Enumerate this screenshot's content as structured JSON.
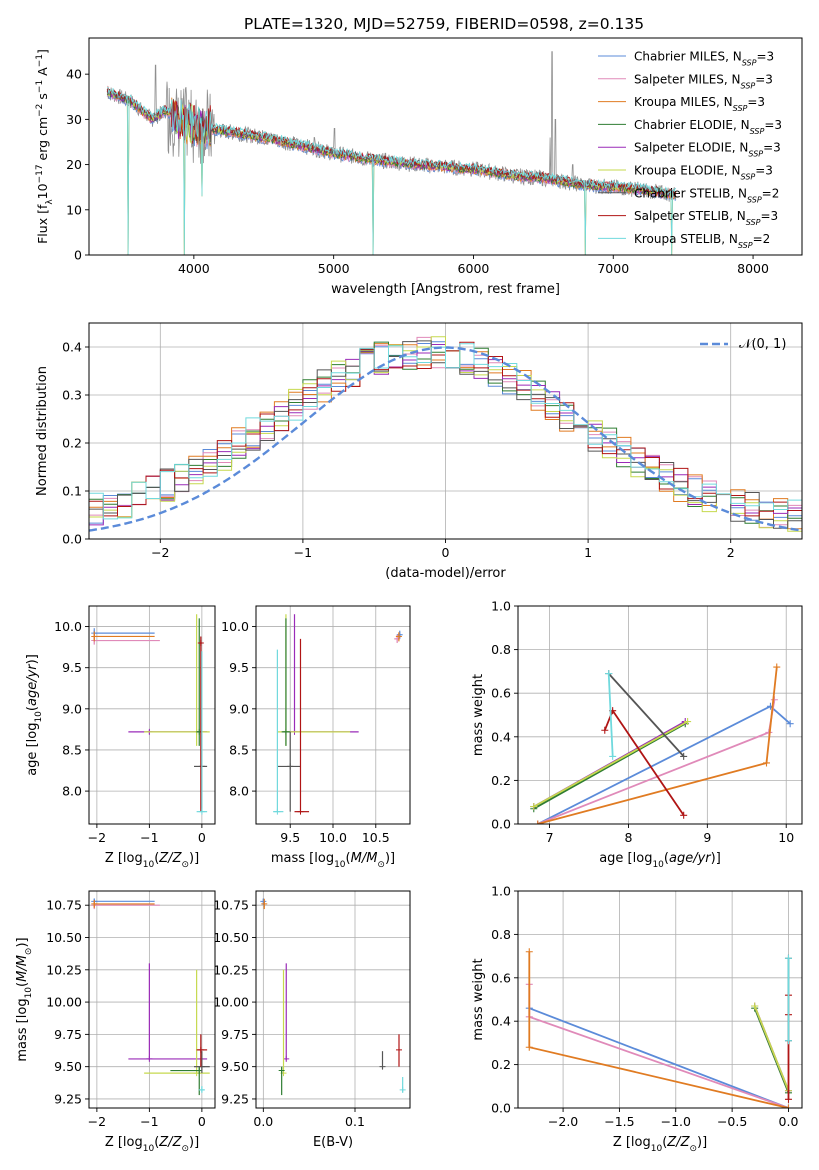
{
  "figure_title": "PLATE=1320, MJD=52759, FIBERID=0598, z=0.135",
  "colors": {
    "chabrier_miles": "#5b8bd9",
    "salpeter_miles": "#e08ab9",
    "kroupa_miles": "#e07b22",
    "chabrier_elodie": "#2f7d32",
    "salpeter_elodie": "#9a2bb8",
    "kroupa_elodie": "#c6d94e",
    "chabrier_stelib": "#555555",
    "salpeter_stelib": "#b01515",
    "kroupa_stelib": "#70d9dd",
    "data": "#8f8f8f",
    "normal": "#5b8bd9"
  },
  "chart_data": [
    {
      "id": "spectrum",
      "type": "line",
      "title": "PLATE=1320, MJD=52759, FIBERID=0598, z=0.135",
      "xlabel": "wavelength [Angstrom, rest frame]",
      "ylabel": "Flux [f_λ 10^-17 erg cm^-2 s^-1 A^-1]",
      "ylabel_parts": [
        "Flux [f",
        "λ",
        "10",
        "−17",
        " erg cm",
        "−2",
        " s",
        "−1",
        " A",
        "−1",
        "]"
      ],
      "xlim": [
        3250,
        8350
      ],
      "ylim": [
        0,
        48
      ],
      "x_ticks": [
        "4000",
        "5000",
        "6000",
        "7000",
        "8000"
      ],
      "y_ticks": [
        "0",
        "10",
        "20",
        "30",
        "40"
      ],
      "grid": false,
      "legend_position": "upper-right",
      "legend": [
        {
          "name": "Chabrier MILES",
          "nssp": "3",
          "key": "chabrier_miles"
        },
        {
          "name": "Salpeter MILES",
          "nssp": "3",
          "key": "salpeter_miles"
        },
        {
          "name": "Kroupa MILES",
          "nssp": "3",
          "key": "kroupa_miles"
        },
        {
          "name": "Chabrier ELODIE",
          "nssp": "3",
          "key": "chabrier_elodie"
        },
        {
          "name": "Salpeter ELODIE",
          "nssp": "3",
          "key": "salpeter_elodie"
        },
        {
          "name": "Kroupa ELODIE",
          "nssp": "3",
          "key": "kroupa_elodie"
        },
        {
          "name": "Chabrier STELIB",
          "nssp": "2",
          "key": "chabrier_stelib"
        },
        {
          "name": "Salpeter STELIB",
          "nssp": "3",
          "key": "salpeter_stelib"
        },
        {
          "name": "Kroupa STELIB",
          "nssp": "2",
          "key": "kroupa_stelib"
        }
      ],
      "continuum": [
        [
          3380,
          36
        ],
        [
          3550,
          34
        ],
        [
          3700,
          30
        ],
        [
          3800,
          32
        ],
        [
          3950,
          29
        ],
        [
          4100,
          28
        ],
        [
          4300,
          27
        ],
        [
          4500,
          26
        ],
        [
          4800,
          24
        ],
        [
          5000,
          22.5
        ],
        [
          5300,
          21
        ],
        [
          5600,
          20
        ],
        [
          6000,
          19
        ],
        [
          6300,
          17.5
        ],
        [
          6500,
          17
        ],
        [
          6800,
          15.5
        ],
        [
          7000,
          15
        ],
        [
          7200,
          14.5
        ],
        [
          7400,
          13.5
        ]
      ],
      "data_spikes": [
        [
          6563,
          45
        ],
        [
          6585,
          30
        ],
        [
          6548,
          26
        ],
        [
          6710,
          20
        ],
        [
          5007,
          28
        ],
        [
          4861,
          26
        ],
        [
          3727,
          42
        ]
      ],
      "model_drops": [
        [
          3530,
          0
        ],
        [
          3930,
          0
        ],
        [
          4060,
          13
        ],
        [
          5280,
          0
        ],
        [
          6800,
          0
        ],
        [
          7420,
          0
        ]
      ]
    },
    {
      "id": "residuals",
      "type": "histogram",
      "xlabel": "(data-model)/error",
      "ylabel": "Normed distribution",
      "xlim": [
        -2.5,
        2.5
      ],
      "ylim": [
        0,
        0.45
      ],
      "x_ticks": [
        "−2",
        "−1",
        "0",
        "1",
        "2"
      ],
      "y_ticks": [
        "0.0",
        "0.1",
        "0.2",
        "0.3",
        "0.4"
      ],
      "grid": true,
      "legend_position": "upper-right",
      "legend_label": "𝒩(0, 1)",
      "bin_width": 0.1,
      "normal": {
        "mu": 0,
        "sigma": 1
      }
    },
    {
      "id": "age_vs_Z",
      "type": "errorbar",
      "xlabel": "Z [log10(Z/Z⊙)]",
      "ylabel": "age [log10(age/yr)]",
      "xlim": [
        -2.15,
        0.25
      ],
      "ylim": [
        7.6,
        10.25
      ],
      "x_ticks": [
        "−2",
        "−1",
        "0"
      ],
      "y_ticks": [
        "8.0",
        "8.5",
        "9.0",
        "9.5",
        "10.0"
      ],
      "grid": true,
      "points": [
        {
          "key": "chabrier_miles",
          "x": -2.05,
          "xe": [
            -2.05,
            -0.9
          ],
          "y": 9.92,
          "ye": [
            9.85,
            9.98
          ]
        },
        {
          "key": "salpeter_miles",
          "x": -2.05,
          "xe": [
            -2.05,
            -0.8
          ],
          "y": 9.83,
          "ye": [
            9.78,
            9.9
          ]
        },
        {
          "key": "kroupa_miles",
          "x": -2.05,
          "xe": [
            -2.05,
            -0.9
          ],
          "y": 9.88,
          "ye": [
            9.82,
            9.94
          ]
        },
        {
          "key": "salpeter_elodie",
          "x": -1.0,
          "xe": [
            -1.4,
            0.1
          ],
          "y": 8.72,
          "ye": [
            8.7,
            8.74
          ]
        },
        {
          "key": "kroupa_elodie",
          "x": -0.1,
          "xe": [
            -1.1,
            0.15
          ],
          "y": 8.72,
          "ye": [
            8.55,
            10.15
          ]
        },
        {
          "key": "chabrier_elodie",
          "x": -0.05,
          "xe": [
            -0.1,
            0.0
          ],
          "y": 8.72,
          "ye": [
            8.55,
            10.1
          ]
        },
        {
          "key": "chabrier_stelib",
          "x": 0.0,
          "xe": [
            -0.15,
            0.1
          ],
          "y": 8.3,
          "ye": [
            7.75,
            8.7
          ]
        },
        {
          "key": "salpeter_stelib",
          "x": -0.02,
          "xe": [
            -0.05,
            0.0
          ],
          "y": 9.8,
          "ye": [
            7.75,
            9.88
          ]
        },
        {
          "key": "kroupa_stelib",
          "x": 0.0,
          "xe": [
            -0.1,
            0.1
          ],
          "y": 7.75,
          "ye": [
            7.75,
            9.7
          ]
        }
      ]
    },
    {
      "id": "age_vs_mass",
      "type": "errorbar",
      "xlabel": "mass [log10(M/M⊙)]",
      "ylabel": "",
      "xlim": [
        9.1,
        10.9
      ],
      "ylim": [
        7.6,
        10.25
      ],
      "x_ticks": [
        "9.5",
        "10.0",
        "10.5"
      ],
      "y_ticks": [
        "8.0",
        "8.5",
        "9.0",
        "9.5",
        "10.0"
      ],
      "grid": true,
      "points": [
        {
          "key": "chabrier_miles",
          "x": 10.78,
          "xe": [
            10.75,
            10.8
          ],
          "y": 9.9,
          "ye": [
            9.85,
            9.95
          ]
        },
        {
          "key": "salpeter_miles",
          "x": 10.75,
          "xe": [
            10.72,
            10.78
          ],
          "y": 9.85,
          "ye": [
            9.8,
            9.9
          ]
        },
        {
          "key": "kroupa_miles",
          "x": 10.77,
          "xe": [
            10.74,
            10.79
          ],
          "y": 9.88,
          "ye": [
            9.82,
            9.93
          ]
        },
        {
          "key": "salpeter_elodie",
          "x": 9.55,
          "xe": [
            9.5,
            10.3
          ],
          "y": 8.72,
          "ye": [
            8.72,
            10.15
          ]
        },
        {
          "key": "kroupa_elodie",
          "x": 9.45,
          "xe": [
            9.35,
            10.2
          ],
          "y": 8.72,
          "ye": [
            8.55,
            10.15
          ]
        },
        {
          "key": "chabrier_elodie",
          "x": 9.45,
          "xe": [
            9.4,
            9.5
          ],
          "y": 8.72,
          "ye": [
            8.55,
            10.1
          ]
        },
        {
          "key": "chabrier_stelib",
          "x": 9.5,
          "xe": [
            9.35,
            9.62
          ],
          "y": 8.3,
          "ye": [
            7.75,
            8.72
          ]
        },
        {
          "key": "salpeter_stelib",
          "x": 9.62,
          "xe": [
            9.55,
            9.72
          ],
          "y": 7.75,
          "ye": [
            7.75,
            9.85
          ]
        },
        {
          "key": "kroupa_stelib",
          "x": 9.35,
          "xe": [
            9.3,
            9.42
          ],
          "y": 7.75,
          "ye": [
            7.75,
            9.72
          ]
        }
      ]
    },
    {
      "id": "mass_weight_vs_age",
      "type": "line",
      "xlabel": "age [log10(age/yr)]",
      "ylabel": "mass weight",
      "xlim": [
        6.6,
        10.2
      ],
      "ylim": [
        0,
        1
      ],
      "x_ticks": [
        "7",
        "8",
        "9",
        "10"
      ],
      "y_ticks": [
        "0.0",
        "0.2",
        "0.4",
        "0.6",
        "0.8",
        "1.0"
      ],
      "grid": true,
      "series": [
        {
          "key": "chabrier_miles",
          "x": [
            6.85,
            9.8,
            10.05
          ],
          "y": [
            0.0,
            0.54,
            0.46
          ]
        },
        {
          "key": "salpeter_miles",
          "x": [
            6.85,
            9.78,
            9.85
          ],
          "y": [
            0.0,
            0.42,
            0.57
          ]
        },
        {
          "key": "kroupa_miles",
          "x": [
            6.85,
            9.75,
            9.88
          ],
          "y": [
            0.0,
            0.28,
            0.72
          ]
        },
        {
          "key": "chabrier_elodie",
          "x": [
            6.8,
            8.72
          ],
          "y": [
            0.07,
            0.46
          ]
        },
        {
          "key": "salpeter_elodie",
          "x": [
            6.8,
            8.72
          ],
          "y": [
            0.08,
            0.47
          ]
        },
        {
          "key": "kroupa_elodie",
          "x": [
            6.8,
            8.75
          ],
          "y": [
            0.08,
            0.47
          ]
        },
        {
          "key": "chabrier_stelib",
          "x": [
            7.75,
            8.7
          ],
          "y": [
            0.69,
            0.31
          ]
        },
        {
          "key": "salpeter_stelib",
          "x": [
            7.7,
            7.8,
            8.7
          ],
          "y": [
            0.43,
            0.52,
            0.04
          ]
        },
        {
          "key": "kroupa_stelib",
          "x": [
            7.75,
            7.8
          ],
          "y": [
            0.69,
            0.31
          ]
        }
      ]
    },
    {
      "id": "mass_vs_Z",
      "type": "errorbar",
      "xlabel": "Z [log10(Z/Z⊙)]",
      "ylabel": "mass [log10(M/M⊙)]",
      "xlim": [
        -2.15,
        0.25
      ],
      "ylim": [
        9.18,
        10.86
      ],
      "x_ticks": [
        "−2",
        "−1",
        "0"
      ],
      "y_ticks": [
        "9.25",
        "9.50",
        "9.75",
        "10.00",
        "10.25",
        "10.50",
        "10.75"
      ],
      "grid": true,
      "points": [
        {
          "key": "chabrier_miles",
          "x": -2.05,
          "xe": [
            -2.05,
            -0.9
          ],
          "y": 10.78,
          "ye": [
            10.75,
            10.8
          ]
        },
        {
          "key": "salpeter_miles",
          "x": -2.05,
          "xe": [
            -2.05,
            -0.8
          ],
          "y": 10.75,
          "ye": [
            10.72,
            10.78
          ]
        },
        {
          "key": "kroupa_miles",
          "x": -2.05,
          "xe": [
            -2.05,
            -0.9
          ],
          "y": 10.76,
          "ye": [
            10.73,
            10.79
          ]
        },
        {
          "key": "salpeter_elodie",
          "x": -1.0,
          "xe": [
            -1.4,
            0.1
          ],
          "y": 9.56,
          "ye": [
            9.55,
            10.3
          ]
        },
        {
          "key": "kroupa_elodie",
          "x": -0.1,
          "xe": [
            -1.1,
            0.15
          ],
          "y": 9.45,
          "ye": [
            9.45,
            10.25
          ]
        },
        {
          "key": "chabrier_elodie",
          "x": -0.05,
          "xe": [
            -0.6,
            0.0
          ],
          "y": 9.47,
          "ye": [
            9.28,
            9.5
          ]
        },
        {
          "key": "chabrier_stelib",
          "x": 0.0,
          "xe": [
            -0.15,
            0.15
          ],
          "y": 9.5,
          "ye": [
            9.45,
            9.62
          ]
        },
        {
          "key": "salpeter_stelib",
          "x": -0.02,
          "xe": [
            -0.1,
            0.1
          ],
          "y": 9.63,
          "ye": [
            9.5,
            9.75
          ]
        },
        {
          "key": "kroupa_stelib",
          "x": 0.0,
          "xe": [
            -0.05,
            0.05
          ],
          "y": 9.32,
          "ye": [
            9.3,
            9.35
          ]
        }
      ]
    },
    {
      "id": "mass_vs_ebv",
      "type": "errorbar",
      "xlabel": "E(B-V)",
      "ylabel": "",
      "xlim": [
        -0.008,
        0.16
      ],
      "ylim": [
        9.18,
        10.86
      ],
      "x_ticks": [
        "0.0",
        "0.1"
      ],
      "y_ticks": [
        "9.25",
        "9.50",
        "9.75",
        "10.00",
        "10.25",
        "10.50",
        "10.75"
      ],
      "grid": true,
      "points": [
        {
          "key": "chabrier_miles",
          "x": 0.0,
          "y": 10.78,
          "ye": [
            10.75,
            10.8
          ]
        },
        {
          "key": "kroupa_miles",
          "x": 0.001,
          "y": 10.76,
          "ye": [
            10.72,
            10.8
          ]
        },
        {
          "key": "salpeter_elodie",
          "x": 0.025,
          "y": 9.56,
          "ye": [
            9.55,
            10.3
          ]
        },
        {
          "key": "kroupa_elodie",
          "x": 0.022,
          "y": 9.45,
          "ye": [
            9.45,
            10.25
          ]
        },
        {
          "key": "chabrier_elodie",
          "x": 0.02,
          "y": 9.47,
          "ye": [
            9.28,
            9.5
          ]
        },
        {
          "key": "chabrier_stelib",
          "x": 0.13,
          "y": 9.5,
          "ye": [
            9.48,
            9.62
          ]
        },
        {
          "key": "salpeter_stelib",
          "x": 0.148,
          "y": 9.63,
          "ye": [
            9.5,
            9.75
          ]
        },
        {
          "key": "kroupa_stelib",
          "x": 0.152,
          "y": 9.32,
          "ye": [
            9.3,
            9.42
          ]
        }
      ]
    },
    {
      "id": "mass_weight_vs_Z",
      "type": "line",
      "xlabel": "Z [log10(Z/Z⊙)]",
      "ylabel": "mass weight",
      "xlim": [
        -2.4,
        0.12
      ],
      "ylim": [
        0,
        1
      ],
      "x_ticks": [
        "−2.0",
        "−1.5",
        "−1.0",
        "−0.5",
        "0.0"
      ],
      "y_ticks": [
        "0.0",
        "0.2",
        "0.4",
        "0.6",
        "0.8",
        "1.0"
      ],
      "grid": true,
      "series": [
        {
          "key": "chabrier_miles",
          "x": [
            -2.3,
            0.0
          ],
          "y": [
            0.46,
            0.0
          ]
        },
        {
          "key": "salpeter_miles",
          "x": [
            -2.3,
            -2.3,
            0.0
          ],
          "y": [
            0.57,
            0.42,
            0.0
          ]
        },
        {
          "key": "kroupa_miles",
          "x": [
            -2.3,
            -2.3,
            0.0
          ],
          "y": [
            0.72,
            0.28,
            0.0
          ]
        },
        {
          "key": "chabrier_elodie",
          "x": [
            -0.3,
            0.0
          ],
          "y": [
            0.46,
            0.07
          ]
        },
        {
          "key": "salpeter_elodie",
          "x": [
            -0.3,
            0.0
          ],
          "y": [
            0.47,
            0.08
          ]
        },
        {
          "key": "kroupa_elodie",
          "x": [
            -0.3,
            0.0
          ],
          "y": [
            0.47,
            0.08
          ]
        },
        {
          "key": "chabrier_stelib",
          "x": [
            0.0,
            0.0
          ],
          "y": [
            0.69,
            0.31
          ]
        },
        {
          "key": "salpeter_stelib",
          "x": [
            0.0,
            0.0,
            0.0
          ],
          "y": [
            0.52,
            0.43,
            0.04
          ]
        },
        {
          "key": "kroupa_stelib",
          "x": [
            0.0,
            0.0
          ],
          "y": [
            0.69,
            0.31
          ]
        }
      ]
    }
  ]
}
